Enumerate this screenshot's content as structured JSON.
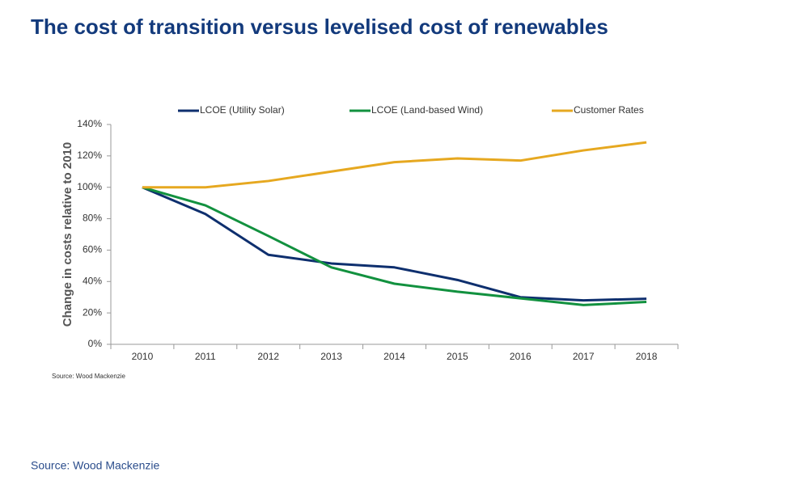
{
  "chart_data": {
    "type": "line",
    "title": "The cost of transition versus levelised cost of renewables",
    "y_label": "Change in costs relative to 2010",
    "source": "Source: Wood Mackenzie",
    "categories": [
      "2010",
      "2011",
      "2012",
      "2013",
      "2014",
      "2015",
      "2016",
      "2017",
      "2018"
    ],
    "series": [
      {
        "name": "LCOE (Utility Solar)",
        "color": "#0e2f6e",
        "values": [
          100,
          83,
          57,
          51.5,
          49,
          41,
          30,
          28,
          29
        ]
      },
      {
        "name": "LCOE (Land-based Wind)",
        "color": "#12913f",
        "values": [
          100,
          88.5,
          69,
          49,
          38.6,
          33.5,
          29.3,
          25,
          27
        ]
      },
      {
        "name": "Customer Rates",
        "color": "#e6a820",
        "values": [
          100,
          100,
          104,
          110,
          116,
          118.4,
          117,
          123.5,
          128.6
        ]
      }
    ],
    "ylim": [
      0,
      140
    ],
    "yticks": [
      {
        "value": 0,
        "label": "0%"
      },
      {
        "value": 20,
        "label": "20%"
      },
      {
        "value": 40,
        "label": "40%"
      },
      {
        "value": 60,
        "label": "60%"
      },
      {
        "value": 80,
        "label": "80%"
      },
      {
        "value": 100,
        "label": "100%"
      },
      {
        "value": 120,
        "label": "120%"
      },
      {
        "value": 140,
        "label": "140%"
      }
    ],
    "grid": false,
    "legend": "top"
  },
  "footer": {
    "source": "Source: Wood Mackenzie"
  }
}
